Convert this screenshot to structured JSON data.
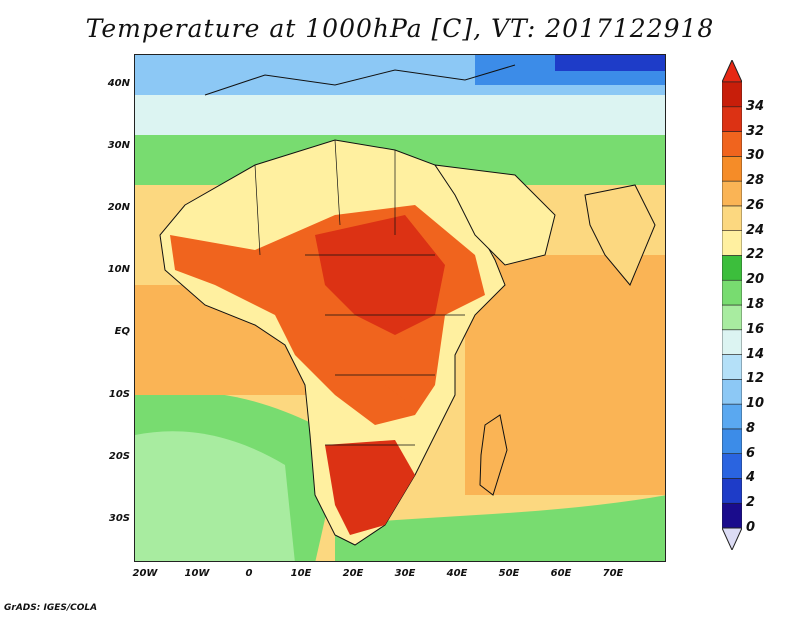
{
  "title": "Temperature at 1000hPa [C], VT: 2017122918",
  "credit": "GrADS: IGES/COLA",
  "map": {
    "lat_range": [
      -37,
      45
    ],
    "lon_range": [
      -22,
      80
    ],
    "lat_ticks": [
      {
        "value": 40,
        "label": "40N"
      },
      {
        "value": 30,
        "label": "30N"
      },
      {
        "value": 20,
        "label": "20N"
      },
      {
        "value": 10,
        "label": "10N"
      },
      {
        "value": 0,
        "label": "EQ"
      },
      {
        "value": -10,
        "label": "10S"
      },
      {
        "value": -20,
        "label": "20S"
      },
      {
        "value": -30,
        "label": "30S"
      }
    ],
    "lon_ticks": [
      {
        "value": -20,
        "label": "20W"
      },
      {
        "value": -10,
        "label": "10W"
      },
      {
        "value": 0,
        "label": "0"
      },
      {
        "value": 10,
        "label": "10E"
      },
      {
        "value": 20,
        "label": "20E"
      },
      {
        "value": 30,
        "label": "30E"
      },
      {
        "value": 40,
        "label": "40E"
      },
      {
        "value": 50,
        "label": "50E"
      },
      {
        "value": 60,
        "label": "60E"
      },
      {
        "value": 70,
        "label": "70E"
      }
    ]
  },
  "colorbar": {
    "levels": [
      "0",
      "2",
      "4",
      "6",
      "8",
      "10",
      "12",
      "14",
      "16",
      "18",
      "20",
      "22",
      "24",
      "26",
      "28",
      "30",
      "32",
      "34"
    ],
    "colors": [
      "#1a0c8c",
      "#1e3cc8",
      "#2a64e0",
      "#3c8ce8",
      "#5aa8f0",
      "#8cc8f5",
      "#b4e0f8",
      "#dcf4f2",
      "#a8eca0",
      "#78dc70",
      "#3cbe3c",
      "#fff0a0",
      "#fcd880",
      "#fab455",
      "#f58c28",
      "#f0641e",
      "#dc3214",
      "#c81e0a"
    ],
    "under_color": "#dcdcf5",
    "over_color": "#e62814"
  }
}
